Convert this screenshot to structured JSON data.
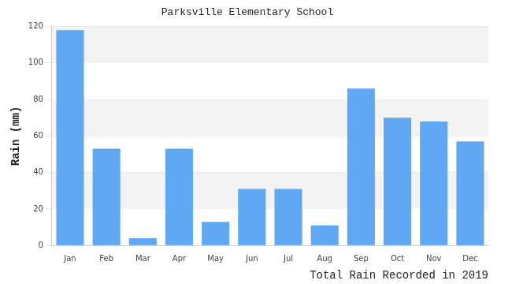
{
  "chart_data": {
    "type": "bar",
    "title": "Parksville Elementary School",
    "x_label": "Total Rain Recorded in 2019",
    "y_label": "Rain (mm)",
    "categories": [
      "Jan",
      "Feb",
      "Mar",
      "Apr",
      "May",
      "Jun",
      "Jul",
      "Aug",
      "Sep",
      "Oct",
      "Nov",
      "Dec"
    ],
    "values": [
      118,
      53,
      4,
      53,
      13,
      31,
      31,
      11,
      86,
      70,
      68,
      57
    ],
    "color": "#60a8f4",
    "ylim": [
      0,
      120
    ],
    "yticks": [
      0,
      20,
      40,
      60,
      80,
      100,
      120
    ],
    "grid": true
  }
}
